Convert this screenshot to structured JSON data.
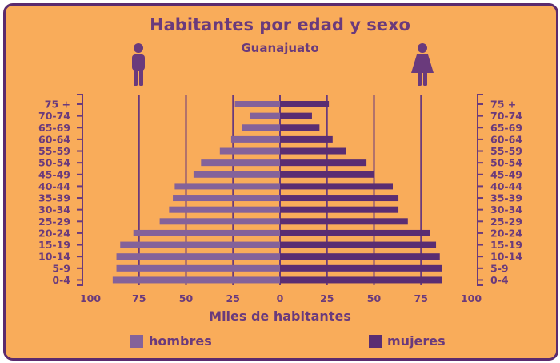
{
  "chart_data": {
    "type": "bar",
    "title": "Habitantes por edad y sexo",
    "subtitle": "Guanajuato",
    "xlabel": "Miles de habitantes",
    "ylabel": "",
    "xlim": [
      -100,
      100
    ],
    "x_ticks": [
      -100,
      -75,
      -50,
      -25,
      0,
      25,
      50,
      75,
      100
    ],
    "x_tick_labels": [
      "100",
      "75",
      "50",
      "25",
      "0",
      "25",
      "50",
      "75",
      "100"
    ],
    "grid": true,
    "legend_position": "bottom",
    "categories": [
      "75 +",
      "70-74",
      "65-69",
      "60-64",
      "55-59",
      "50-54",
      "45-49",
      "40-44",
      "35-39",
      "30-34",
      "25-29",
      "20-24",
      "15-19",
      "10-14",
      "5-9",
      "0-4"
    ],
    "series": [
      {
        "name": "hombres",
        "color": "#84629A",
        "values": [
          24,
          16,
          20,
          26,
          32,
          42,
          46,
          56,
          57,
          59,
          64,
          78,
          85,
          87,
          87,
          89
        ]
      },
      {
        "name": "mujeres",
        "color": "#5A2D72",
        "values": [
          26,
          17,
          21,
          28,
          35,
          46,
          50,
          60,
          63,
          63,
          68,
          80,
          83,
          85,
          86,
          86
        ]
      }
    ]
  },
  "icons": {
    "male": "male-person-icon",
    "female": "female-person-icon"
  },
  "colors": {
    "background": "#F9AC5A",
    "border": "#5B2B6E",
    "grid": "#6A3A7C",
    "text": "#6A3A7C"
  }
}
